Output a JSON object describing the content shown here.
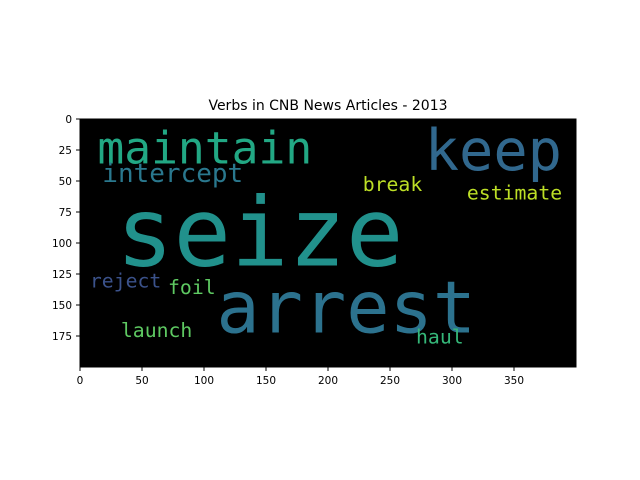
{
  "chart_data": {
    "type": "wordcloud",
    "title": "Verbs in CNB News Articles - 2013",
    "background": "#000000",
    "xlim": [
      0,
      400
    ],
    "ylim": [
      200,
      0
    ],
    "x_ticks": [
      0,
      50,
      100,
      150,
      200,
      250,
      300,
      350
    ],
    "y_ticks": [
      0,
      25,
      50,
      75,
      100,
      125,
      150,
      175
    ],
    "words": [
      {
        "text": "seize",
        "x": 29,
        "y": 118,
        "size": 77,
        "color": "#21918c"
      },
      {
        "text": "arrest",
        "x": 110,
        "y": 172,
        "size": 58,
        "color": "#2c728e"
      },
      {
        "text": "keep",
        "x": 278,
        "y": 41,
        "size": 46,
        "color": "#31688e"
      },
      {
        "text": "maintain",
        "x": 14,
        "y": 36,
        "size": 36,
        "color": "#22a884"
      },
      {
        "text": "intercept",
        "x": 18,
        "y": 51,
        "size": 21,
        "color": "#2a788e"
      },
      {
        "text": "break",
        "x": 228,
        "y": 58,
        "size": 16,
        "color": "#bddf26"
      },
      {
        "text": "estimate",
        "x": 312,
        "y": 65,
        "size": 16,
        "color": "#bddf26"
      },
      {
        "text": "reject",
        "x": 8,
        "y": 136,
        "size": 16,
        "color": "#3b528b"
      },
      {
        "text": "foil",
        "x": 71,
        "y": 141,
        "size": 16,
        "color": "#5ec962"
      },
      {
        "text": "launch",
        "x": 33,
        "y": 176,
        "size": 16,
        "color": "#5ec962"
      },
      {
        "text": "haul",
        "x": 271,
        "y": 181,
        "size": 16,
        "color": "#35b779"
      }
    ]
  }
}
